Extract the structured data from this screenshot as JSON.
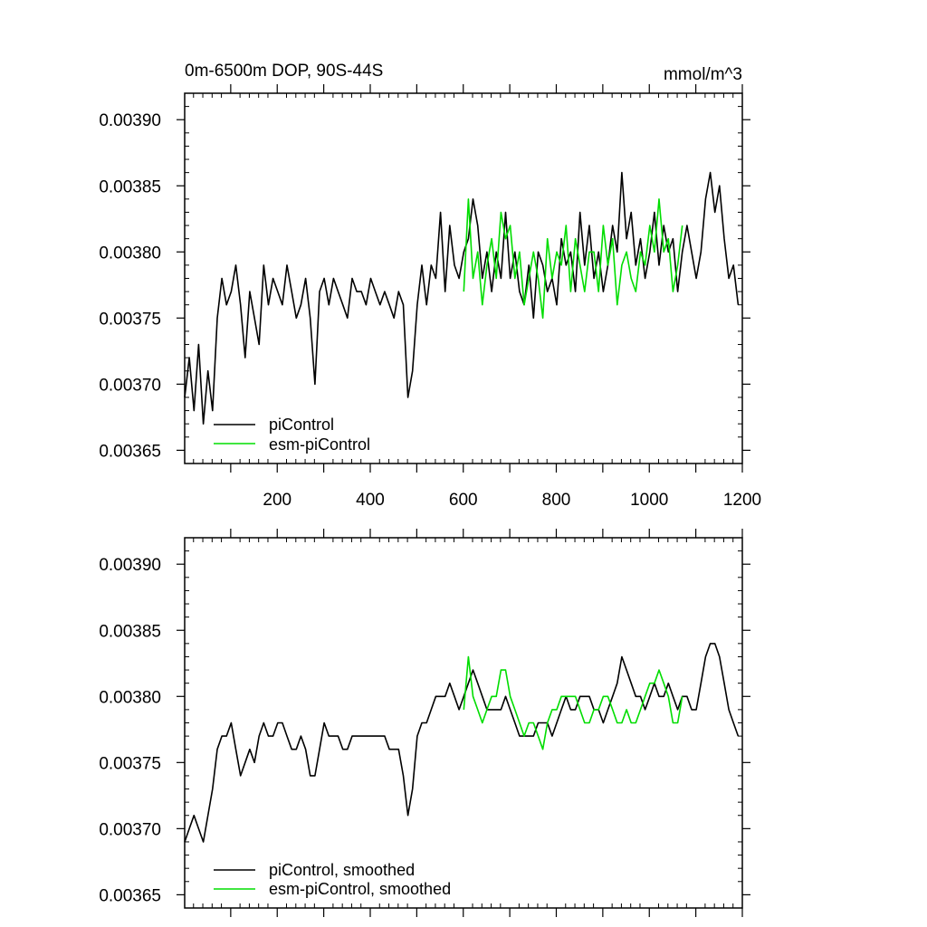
{
  "chart_data": [
    {
      "type": "line",
      "title": "0m-6500m DOP, 90S-44S",
      "units": "mmol/m^3",
      "xlim": [
        1,
        1200
      ],
      "ylim": [
        0.00364,
        0.00392
      ],
      "xticks": [
        200,
        400,
        600,
        800,
        1000,
        1200
      ],
      "xtick_labels": [
        "200",
        "400",
        "600",
        "800",
        "1000",
        "1200"
      ],
      "yticks": [
        0.00365,
        0.0037,
        0.00375,
        0.0038,
        0.00385,
        0.0039
      ],
      "ytick_labels": [
        "0.00365",
        "0.00370",
        "0.00375",
        "0.00380",
        "0.00385",
        "0.00390"
      ],
      "legend": [
        "piControl",
        "esm-piControl"
      ],
      "series": [
        {
          "name": "piControl",
          "color": "#000000",
          "x_start": 1,
          "x_step": 10,
          "values": [
            0.00369,
            0.00372,
            0.00368,
            0.00373,
            0.00367,
            0.00371,
            0.00368,
            0.00375,
            0.00378,
            0.00376,
            0.00377,
            0.00379,
            0.00376,
            0.00372,
            0.00377,
            0.00375,
            0.00373,
            0.00379,
            0.00376,
            0.00378,
            0.00377,
            0.00376,
            0.00379,
            0.00377,
            0.00375,
            0.00376,
            0.00378,
            0.00375,
            0.0037,
            0.00377,
            0.00378,
            0.00376,
            0.00378,
            0.00377,
            0.00376,
            0.00375,
            0.00378,
            0.00377,
            0.00377,
            0.00376,
            0.00378,
            0.00377,
            0.00376,
            0.00377,
            0.00376,
            0.00375,
            0.00377,
            0.00376,
            0.00369,
            0.00371,
            0.00376,
            0.00379,
            0.00376,
            0.00379,
            0.00378,
            0.00383,
            0.00377,
            0.00382,
            0.00379,
            0.00378,
            0.0038,
            0.00381,
            0.00384,
            0.00382,
            0.00378,
            0.0038,
            0.00377,
            0.0038,
            0.00378,
            0.00383,
            0.00378,
            0.0038,
            0.00377,
            0.00376,
            0.00379,
            0.00375,
            0.0038,
            0.00379,
            0.00377,
            0.00378,
            0.00376,
            0.00381,
            0.00379,
            0.0038,
            0.00377,
            0.00383,
            0.00379,
            0.00382,
            0.00378,
            0.0038,
            0.00377,
            0.00379,
            0.00382,
            0.0038,
            0.00386,
            0.00381,
            0.00383,
            0.00379,
            0.00381,
            0.00378,
            0.0038,
            0.00383,
            0.00379,
            0.00382,
            0.0038,
            0.00381,
            0.00377,
            0.0038,
            0.00382,
            0.0038,
            0.00378,
            0.0038,
            0.00384,
            0.00386,
            0.00383,
            0.00385,
            0.00381,
            0.00378,
            0.00379,
            0.00376
          ]
        },
        {
          "name": "esm-piControl",
          "color": "#00dd00",
          "x_start": 601,
          "x_step": 10,
          "values": [
            0.00377,
            0.00384,
            0.00378,
            0.0038,
            0.00376,
            0.00379,
            0.00381,
            0.00378,
            0.00383,
            0.00381,
            0.00382,
            0.00378,
            0.0038,
            0.00376,
            0.00378,
            0.0038,
            0.00378,
            0.00375,
            0.00381,
            0.00378,
            0.0038,
            0.00379,
            0.00382,
            0.00377,
            0.00381,
            0.00379,
            0.00377,
            0.0038,
            0.0038,
            0.00377,
            0.00382,
            0.00379,
            0.00381,
            0.00376,
            0.00379,
            0.0038,
            0.00378,
            0.00377,
            0.0038,
            0.00379,
            0.00382,
            0.0038,
            0.00384,
            0.0038,
            0.00381,
            0.00377,
            0.00379,
            0.00382
          ]
        }
      ]
    },
    {
      "type": "line",
      "xlim": [
        1,
        1200
      ],
      "ylim": [
        0.00364,
        0.00392
      ],
      "yticks": [
        0.00365,
        0.0037,
        0.00375,
        0.0038,
        0.00385,
        0.0039
      ],
      "ytick_labels": [
        "0.00365",
        "0.00370",
        "0.00375",
        "0.00380",
        "0.00385",
        "0.00390"
      ],
      "legend": [
        "piControl, smoothed",
        "esm-piControl, smoothed"
      ],
      "series": [
        {
          "name": "piControl, smoothed",
          "color": "#000000",
          "x_start": 1,
          "x_step": 10,
          "values": [
            0.00369,
            0.0037,
            0.00371,
            0.0037,
            0.00369,
            0.00371,
            0.00373,
            0.00376,
            0.00377,
            0.00377,
            0.00378,
            0.00376,
            0.00374,
            0.00375,
            0.00376,
            0.00375,
            0.00377,
            0.00378,
            0.00377,
            0.00377,
            0.00378,
            0.00378,
            0.00377,
            0.00376,
            0.00376,
            0.00377,
            0.00376,
            0.00374,
            0.00374,
            0.00376,
            0.00378,
            0.00377,
            0.00377,
            0.00377,
            0.00376,
            0.00376,
            0.00377,
            0.00377,
            0.00377,
            0.00377,
            0.00377,
            0.00377,
            0.00377,
            0.00377,
            0.00376,
            0.00376,
            0.00376,
            0.00374,
            0.00371,
            0.00373,
            0.00377,
            0.00378,
            0.00378,
            0.00379,
            0.0038,
            0.0038,
            0.0038,
            0.00381,
            0.0038,
            0.00379,
            0.0038,
            0.00381,
            0.00382,
            0.00381,
            0.0038,
            0.00379,
            0.00379,
            0.00379,
            0.00379,
            0.0038,
            0.00379,
            0.00378,
            0.00377,
            0.00377,
            0.00377,
            0.00377,
            0.00378,
            0.00378,
            0.00378,
            0.00377,
            0.00378,
            0.00379,
            0.0038,
            0.00379,
            0.00379,
            0.0038,
            0.0038,
            0.0038,
            0.00379,
            0.00379,
            0.00378,
            0.00379,
            0.0038,
            0.00381,
            0.00383,
            0.00382,
            0.00381,
            0.0038,
            0.0038,
            0.00379,
            0.0038,
            0.00381,
            0.0038,
            0.0038,
            0.00381,
            0.0038,
            0.00379,
            0.0038,
            0.0038,
            0.00379,
            0.00379,
            0.00381,
            0.00383,
            0.00384,
            0.00384,
            0.00383,
            0.00381,
            0.00379,
            0.00378,
            0.00377
          ]
        },
        {
          "name": "esm-piControl, smoothed",
          "color": "#00dd00",
          "x_start": 601,
          "x_step": 10,
          "values": [
            0.00379,
            0.00383,
            0.0038,
            0.00379,
            0.00378,
            0.00379,
            0.0038,
            0.0038,
            0.00382,
            0.00382,
            0.0038,
            0.00379,
            0.00378,
            0.00377,
            0.00378,
            0.00378,
            0.00377,
            0.00376,
            0.00378,
            0.00379,
            0.00379,
            0.0038,
            0.0038,
            0.0038,
            0.0038,
            0.00379,
            0.00378,
            0.00378,
            0.00379,
            0.00379,
            0.0038,
            0.0038,
            0.00379,
            0.00378,
            0.00378,
            0.00379,
            0.00378,
            0.00378,
            0.00379,
            0.0038,
            0.00381,
            0.00381,
            0.00382,
            0.00381,
            0.0038,
            0.00378,
            0.00378,
            0.0038
          ]
        }
      ]
    }
  ],
  "colors": {
    "pi": "#000000",
    "esm": "#00dd00"
  }
}
